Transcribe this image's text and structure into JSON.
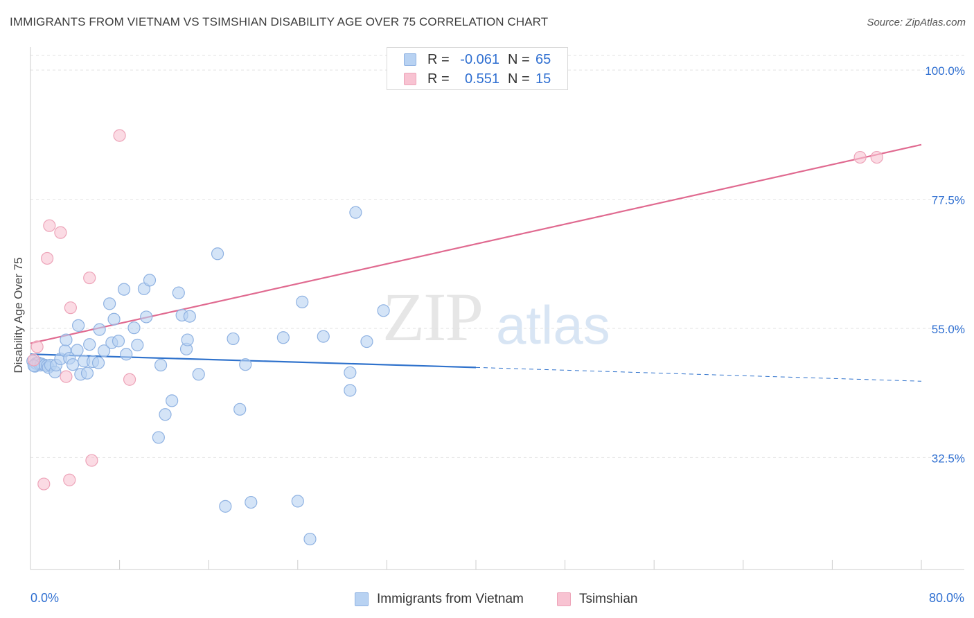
{
  "title": "IMMIGRANTS FROM VIETNAM VS TSIMSHIAN DISABILITY AGE OVER 75 CORRELATION CHART",
  "source": "Source: ZipAtlas.com",
  "watermark": {
    "zip": "ZIP",
    "atlas": "atlas"
  },
  "colors": {
    "blue_fill": "#b8d2f2",
    "blue_stroke": "#8fb2e2",
    "blue_line": "#2f72cc",
    "pink_fill": "#f8c3d2",
    "pink_stroke": "#eda3b8",
    "pink_line": "#e06a90",
    "value_text": "#2f6fd1",
    "grid": "#e2e2e2"
  },
  "legend": {
    "rows": [
      {
        "r_label": "R =",
        "r_value": "-0.061",
        "n_label": "N =",
        "n_value": "65",
        "swatch": "blue"
      },
      {
        "r_label": "R =",
        "r_value": "0.551",
        "n_label": "N =",
        "n_value": "15",
        "swatch": "pink"
      }
    ]
  },
  "bottom_legend": {
    "items": [
      {
        "label": "Immigrants from Vietnam",
        "swatch": "blue"
      },
      {
        "label": "Tsimshian",
        "swatch": "pink"
      }
    ]
  },
  "chart_data": {
    "type": "scatter",
    "title": "IMMIGRANTS FROM VIETNAM VS TSIMSHIAN DISABILITY AGE OVER 75 CORRELATION CHART",
    "xlabel": "",
    "ylabel": "Disability Age Over 75",
    "xlim": [
      0,
      80
    ],
    "ylim": [
      13,
      104
    ],
    "x_ticks_labeled": [
      {
        "value": 0,
        "label": "0.0%"
      },
      {
        "value": 80,
        "label": "80.0%"
      }
    ],
    "x_minor_ticks": [
      8,
      16,
      24,
      32,
      40,
      48,
      56,
      64,
      72
    ],
    "y_ticks": [
      {
        "value": 100,
        "label": "100.0%"
      },
      {
        "value": 77.5,
        "label": "77.5%"
      },
      {
        "value": 55,
        "label": "55.0%"
      },
      {
        "value": 32.5,
        "label": "32.5%"
      }
    ],
    "series": [
      {
        "name": "Immigrants from Vietnam",
        "color": "blue",
        "R": -0.061,
        "N": 65,
        "points": [
          [
            0.2,
            49.3
          ],
          [
            0.4,
            48.4
          ],
          [
            0.5,
            48.9
          ],
          [
            0.7,
            49.0
          ],
          [
            0.9,
            48.6
          ],
          [
            1.0,
            48.8
          ],
          [
            1.3,
            48.6
          ],
          [
            1.5,
            48.5
          ],
          [
            1.6,
            48.2
          ],
          [
            1.8,
            48.6
          ],
          [
            2.2,
            47.4
          ],
          [
            2.3,
            48.6
          ],
          [
            2.7,
            49.7
          ],
          [
            3.1,
            51.1
          ],
          [
            3.2,
            53.0
          ],
          [
            3.5,
            49.8
          ],
          [
            3.8,
            48.7
          ],
          [
            4.2,
            51.2
          ],
          [
            4.3,
            55.5
          ],
          [
            4.5,
            47.0
          ],
          [
            4.8,
            49.3
          ],
          [
            5.1,
            47.2
          ],
          [
            5.3,
            52.2
          ],
          [
            5.6,
            49.2
          ],
          [
            6.1,
            49.0
          ],
          [
            6.2,
            54.8
          ],
          [
            6.6,
            51.1
          ],
          [
            7.1,
            59.3
          ],
          [
            7.3,
            52.5
          ],
          [
            7.5,
            56.6
          ],
          [
            7.9,
            52.8
          ],
          [
            8.4,
            61.8
          ],
          [
            8.6,
            50.5
          ],
          [
            9.3,
            55.1
          ],
          [
            9.6,
            52.1
          ],
          [
            10.2,
            61.9
          ],
          [
            10.4,
            57.0
          ],
          [
            10.7,
            63.4
          ],
          [
            11.5,
            36.0
          ],
          [
            11.7,
            48.6
          ],
          [
            12.1,
            40.0
          ],
          [
            12.7,
            42.4
          ],
          [
            13.3,
            61.2
          ],
          [
            13.6,
            57.3
          ],
          [
            14.0,
            51.4
          ],
          [
            14.1,
            53.0
          ],
          [
            14.3,
            57.1
          ],
          [
            15.1,
            47.0
          ],
          [
            16.8,
            68.0
          ],
          [
            17.5,
            24.0
          ],
          [
            18.2,
            53.2
          ],
          [
            18.8,
            40.9
          ],
          [
            19.3,
            48.7
          ],
          [
            19.8,
            24.7
          ],
          [
            22.7,
            53.4
          ],
          [
            24.0,
            24.9
          ],
          [
            24.4,
            59.6
          ],
          [
            25.1,
            18.3
          ],
          [
            26.3,
            53.6
          ],
          [
            28.7,
            47.3
          ],
          [
            28.7,
            44.2
          ],
          [
            29.2,
            75.2
          ],
          [
            30.2,
            52.7
          ],
          [
            31.7,
            58.1
          ],
          [
            0.3,
            48.5
          ]
        ]
      },
      {
        "name": "Tsimshian",
        "color": "pink",
        "R": 0.551,
        "N": 15,
        "points": [
          [
            0.6,
            51.8
          ],
          [
            0.3,
            49.5
          ],
          [
            1.2,
            27.9
          ],
          [
            1.5,
            67.2
          ],
          [
            1.7,
            72.9
          ],
          [
            2.7,
            71.7
          ],
          [
            3.2,
            46.6
          ],
          [
            3.5,
            28.6
          ],
          [
            3.6,
            58.6
          ],
          [
            5.3,
            63.8
          ],
          [
            5.5,
            32.0
          ],
          [
            8.0,
            88.6
          ],
          [
            8.9,
            46.1
          ],
          [
            74.5,
            84.8
          ],
          [
            76.0,
            84.8
          ]
        ]
      }
    ],
    "trendlines": [
      {
        "series": "Immigrants from Vietnam",
        "x_start": 0,
        "x_solid_end": 40,
        "x_end": 80,
        "y_start": 50.5,
        "y_solid_end": 48.2,
        "y_end": 45.8
      },
      {
        "series": "Tsimshian",
        "x_start": 0,
        "x_end": 80,
        "y_start": 52.4,
        "y_end": 87.0
      }
    ]
  }
}
